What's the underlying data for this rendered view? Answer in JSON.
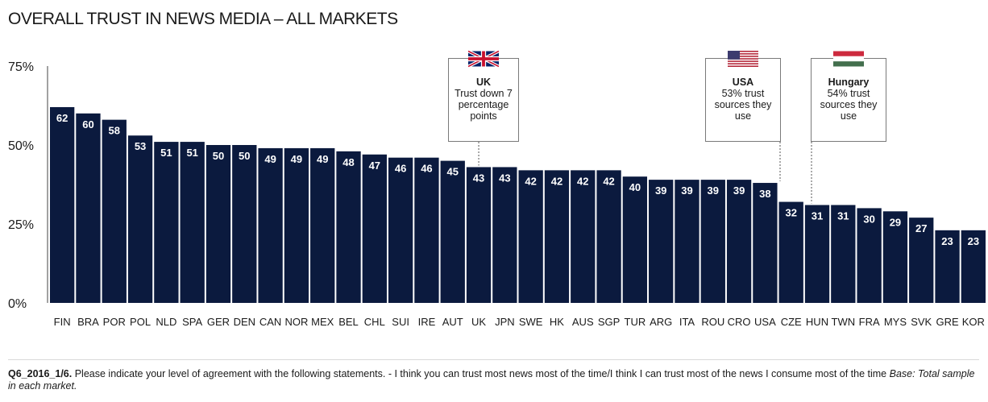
{
  "title": "OVERALL TRUST IN NEWS MEDIA – ALL MARKETS",
  "chart_data": {
    "type": "bar",
    "title": "OVERALL TRUST IN NEWS MEDIA – ALL MARKETS",
    "categories": [
      "FIN",
      "BRA",
      "POR",
      "POL",
      "NLD",
      "SPA",
      "GER",
      "DEN",
      "CAN",
      "NOR",
      "MEX",
      "BEL",
      "CHL",
      "SUI",
      "IRE",
      "AUT",
      "UK",
      "JPN",
      "SWE",
      "HK",
      "AUS",
      "SGP",
      "TUR",
      "ARG",
      "ITA",
      "ROU",
      "CRO",
      "USA",
      "CZE",
      "HUN",
      "TWN",
      "FRA",
      "MYS",
      "SVK",
      "GRE",
      "KOR"
    ],
    "values": [
      62,
      60,
      58,
      53,
      51,
      51,
      50,
      50,
      49,
      49,
      49,
      48,
      47,
      46,
      46,
      45,
      43,
      43,
      42,
      42,
      42,
      42,
      40,
      39,
      39,
      39,
      39,
      38,
      32,
      31,
      31,
      30,
      29,
      27,
      23,
      23
    ],
    "yticks": [
      "75%",
      "50%",
      "25%",
      "0%"
    ],
    "ylim": [
      0,
      75
    ],
    "bar_color": "#0b1a3e",
    "grid": false,
    "legend": "none"
  },
  "callouts": [
    {
      "country": "UK",
      "name": "UK",
      "text": "Trust down 7 percentage points",
      "flag": "uk-flag"
    },
    {
      "country": "USA",
      "name": "USA",
      "text": "53% trust sources they use",
      "flag": "usa-flag"
    },
    {
      "country": "HUN",
      "name": "Hungary",
      "text": "54% trust sources they use",
      "flag": "hungary-flag"
    }
  ],
  "footer": {
    "code": "Q6_2016_1/6.",
    "question": " Please indicate your level of agreement with the following statements. - I think you can trust most news most of the time/I think I can trust most of the news I consume most of the time ",
    "base": "Base: Total sample in each market."
  }
}
